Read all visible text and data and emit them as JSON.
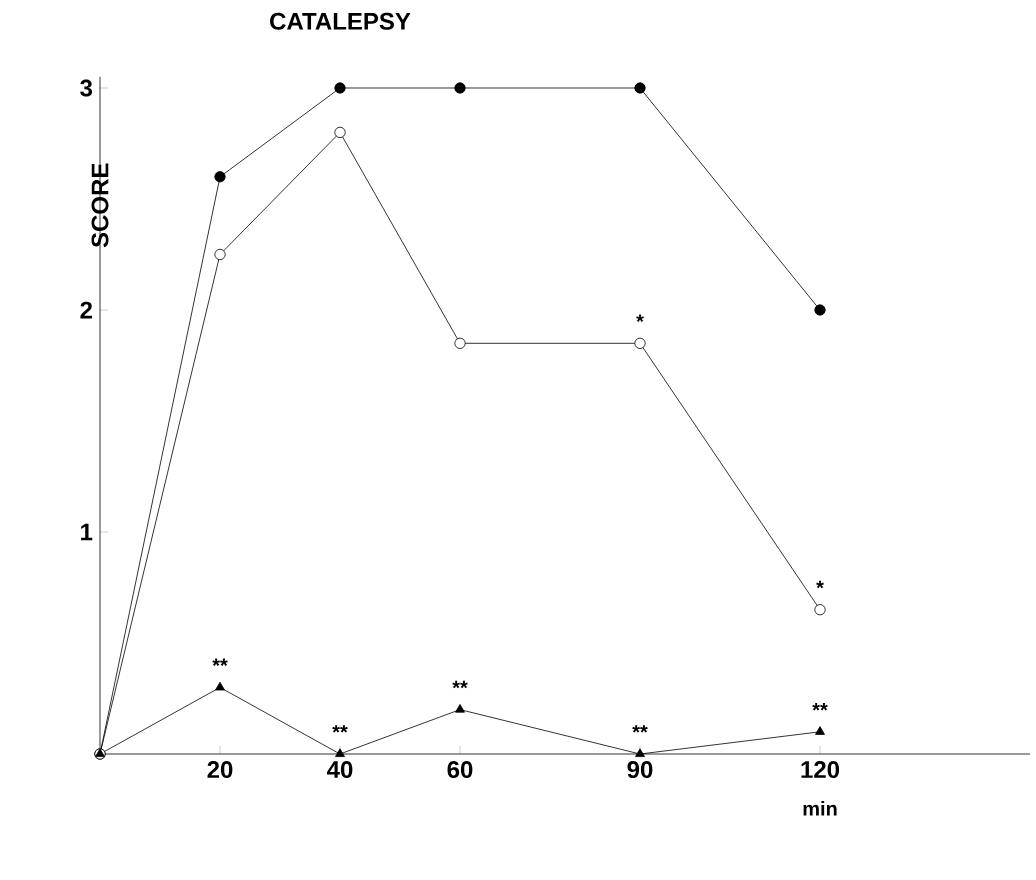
{
  "chart_data": {
    "type": "line",
    "title": "CATALEPSY",
    "xlabel": "min",
    "ylabel": "SCORE",
    "x": [
      0,
      20,
      40,
      60,
      90,
      120
    ],
    "series": [
      {
        "color": "#000000",
        "marker": "circle",
        "values": [
          0,
          2.6,
          3,
          3,
          3,
          2
        ]
      },
      {
        "color": "#000000",
        "marker": "circle",
        "colors": [
          "#ffffff",
          "#ffffff",
          "#ffffff",
          "#ffffff",
          "#ffffff",
          "#ffffff"
        ],
        "values": [
          0,
          2.25,
          2.8,
          1.85,
          1.85,
          0.65
        ]
      },
      {
        "color": "#000000",
        "marker": "triangle",
        "values": [
          0,
          0.3,
          0,
          0.2,
          0,
          0.1
        ]
      }
    ],
    "annotations": [
      {
        "text": "**",
        "x": 20,
        "y": 0.3
      },
      {
        "text": "**",
        "x": 40,
        "y": 0
      },
      {
        "text": "**",
        "x": 60,
        "y": 0.2
      },
      {
        "text": "**",
        "x": 90,
        "y": 0
      },
      {
        "text": "**",
        "x": 120,
        "y": 0.1
      },
      {
        "text": "*",
        "x": 90,
        "y": 1.85
      },
      {
        "text": "*",
        "x": 120,
        "y": 0.65
      }
    ],
    "xlim": [
      0,
      155
    ],
    "ylim": [
      0,
      3.05
    ],
    "xticks": [
      20,
      40,
      60,
      90,
      120
    ],
    "yticks": [
      1,
      2,
      3
    ],
    "line_style": "solid"
  }
}
